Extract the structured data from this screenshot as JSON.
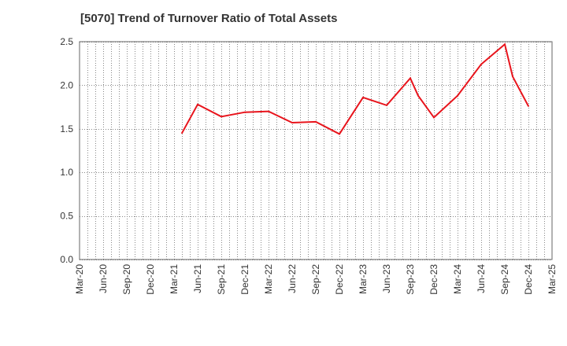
{
  "chart_data": {
    "type": "line",
    "title": "[5070]  Trend of Turnover Ratio of Total Assets",
    "xlabel": "",
    "ylabel": "",
    "ylim": [
      0,
      2.5
    ],
    "y_ticks": [
      "0.0",
      "0.5",
      "1.0",
      "1.5",
      "2.0",
      "2.5"
    ],
    "x_ticks": [
      "Mar-20",
      "Jun-20",
      "Sep-20",
      "Dec-20",
      "Mar-21",
      "Jun-21",
      "Sep-21",
      "Dec-21",
      "Mar-22",
      "Jun-22",
      "Sep-22",
      "Dec-22",
      "Mar-23",
      "Jun-23",
      "Sep-23",
      "Dec-23",
      "Mar-24",
      "Jun-24",
      "Sep-24",
      "Dec-24",
      "Mar-25"
    ],
    "grid": true,
    "legend": "none",
    "series": [
      {
        "color": "#e8141c",
        "points": [
          {
            "x": "Apr-21",
            "y": 1.45
          },
          {
            "x": "Jun-21",
            "y": 1.78
          },
          {
            "x": "Sep-21",
            "y": 1.64
          },
          {
            "x": "Dec-21",
            "y": 1.69
          },
          {
            "x": "Mar-22",
            "y": 1.7
          },
          {
            "x": "Jun-22",
            "y": 1.57
          },
          {
            "x": "Sep-22",
            "y": 1.58
          },
          {
            "x": "Dec-22",
            "y": 1.44
          },
          {
            "x": "Mar-23",
            "y": 1.86
          },
          {
            "x": "Jun-23",
            "y": 1.77
          },
          {
            "x": "Sep-23",
            "y": 2.08
          },
          {
            "x": "Oct-23",
            "y": 1.88
          },
          {
            "x": "Dec-23",
            "y": 1.63
          },
          {
            "x": "Mar-24",
            "y": 1.88
          },
          {
            "x": "Jun-24",
            "y": 2.24
          },
          {
            "x": "Sep-24",
            "y": 2.47
          },
          {
            "x": "Oct-24",
            "y": 2.1
          },
          {
            "x": "Dec-24",
            "y": 1.76
          }
        ]
      }
    ]
  }
}
